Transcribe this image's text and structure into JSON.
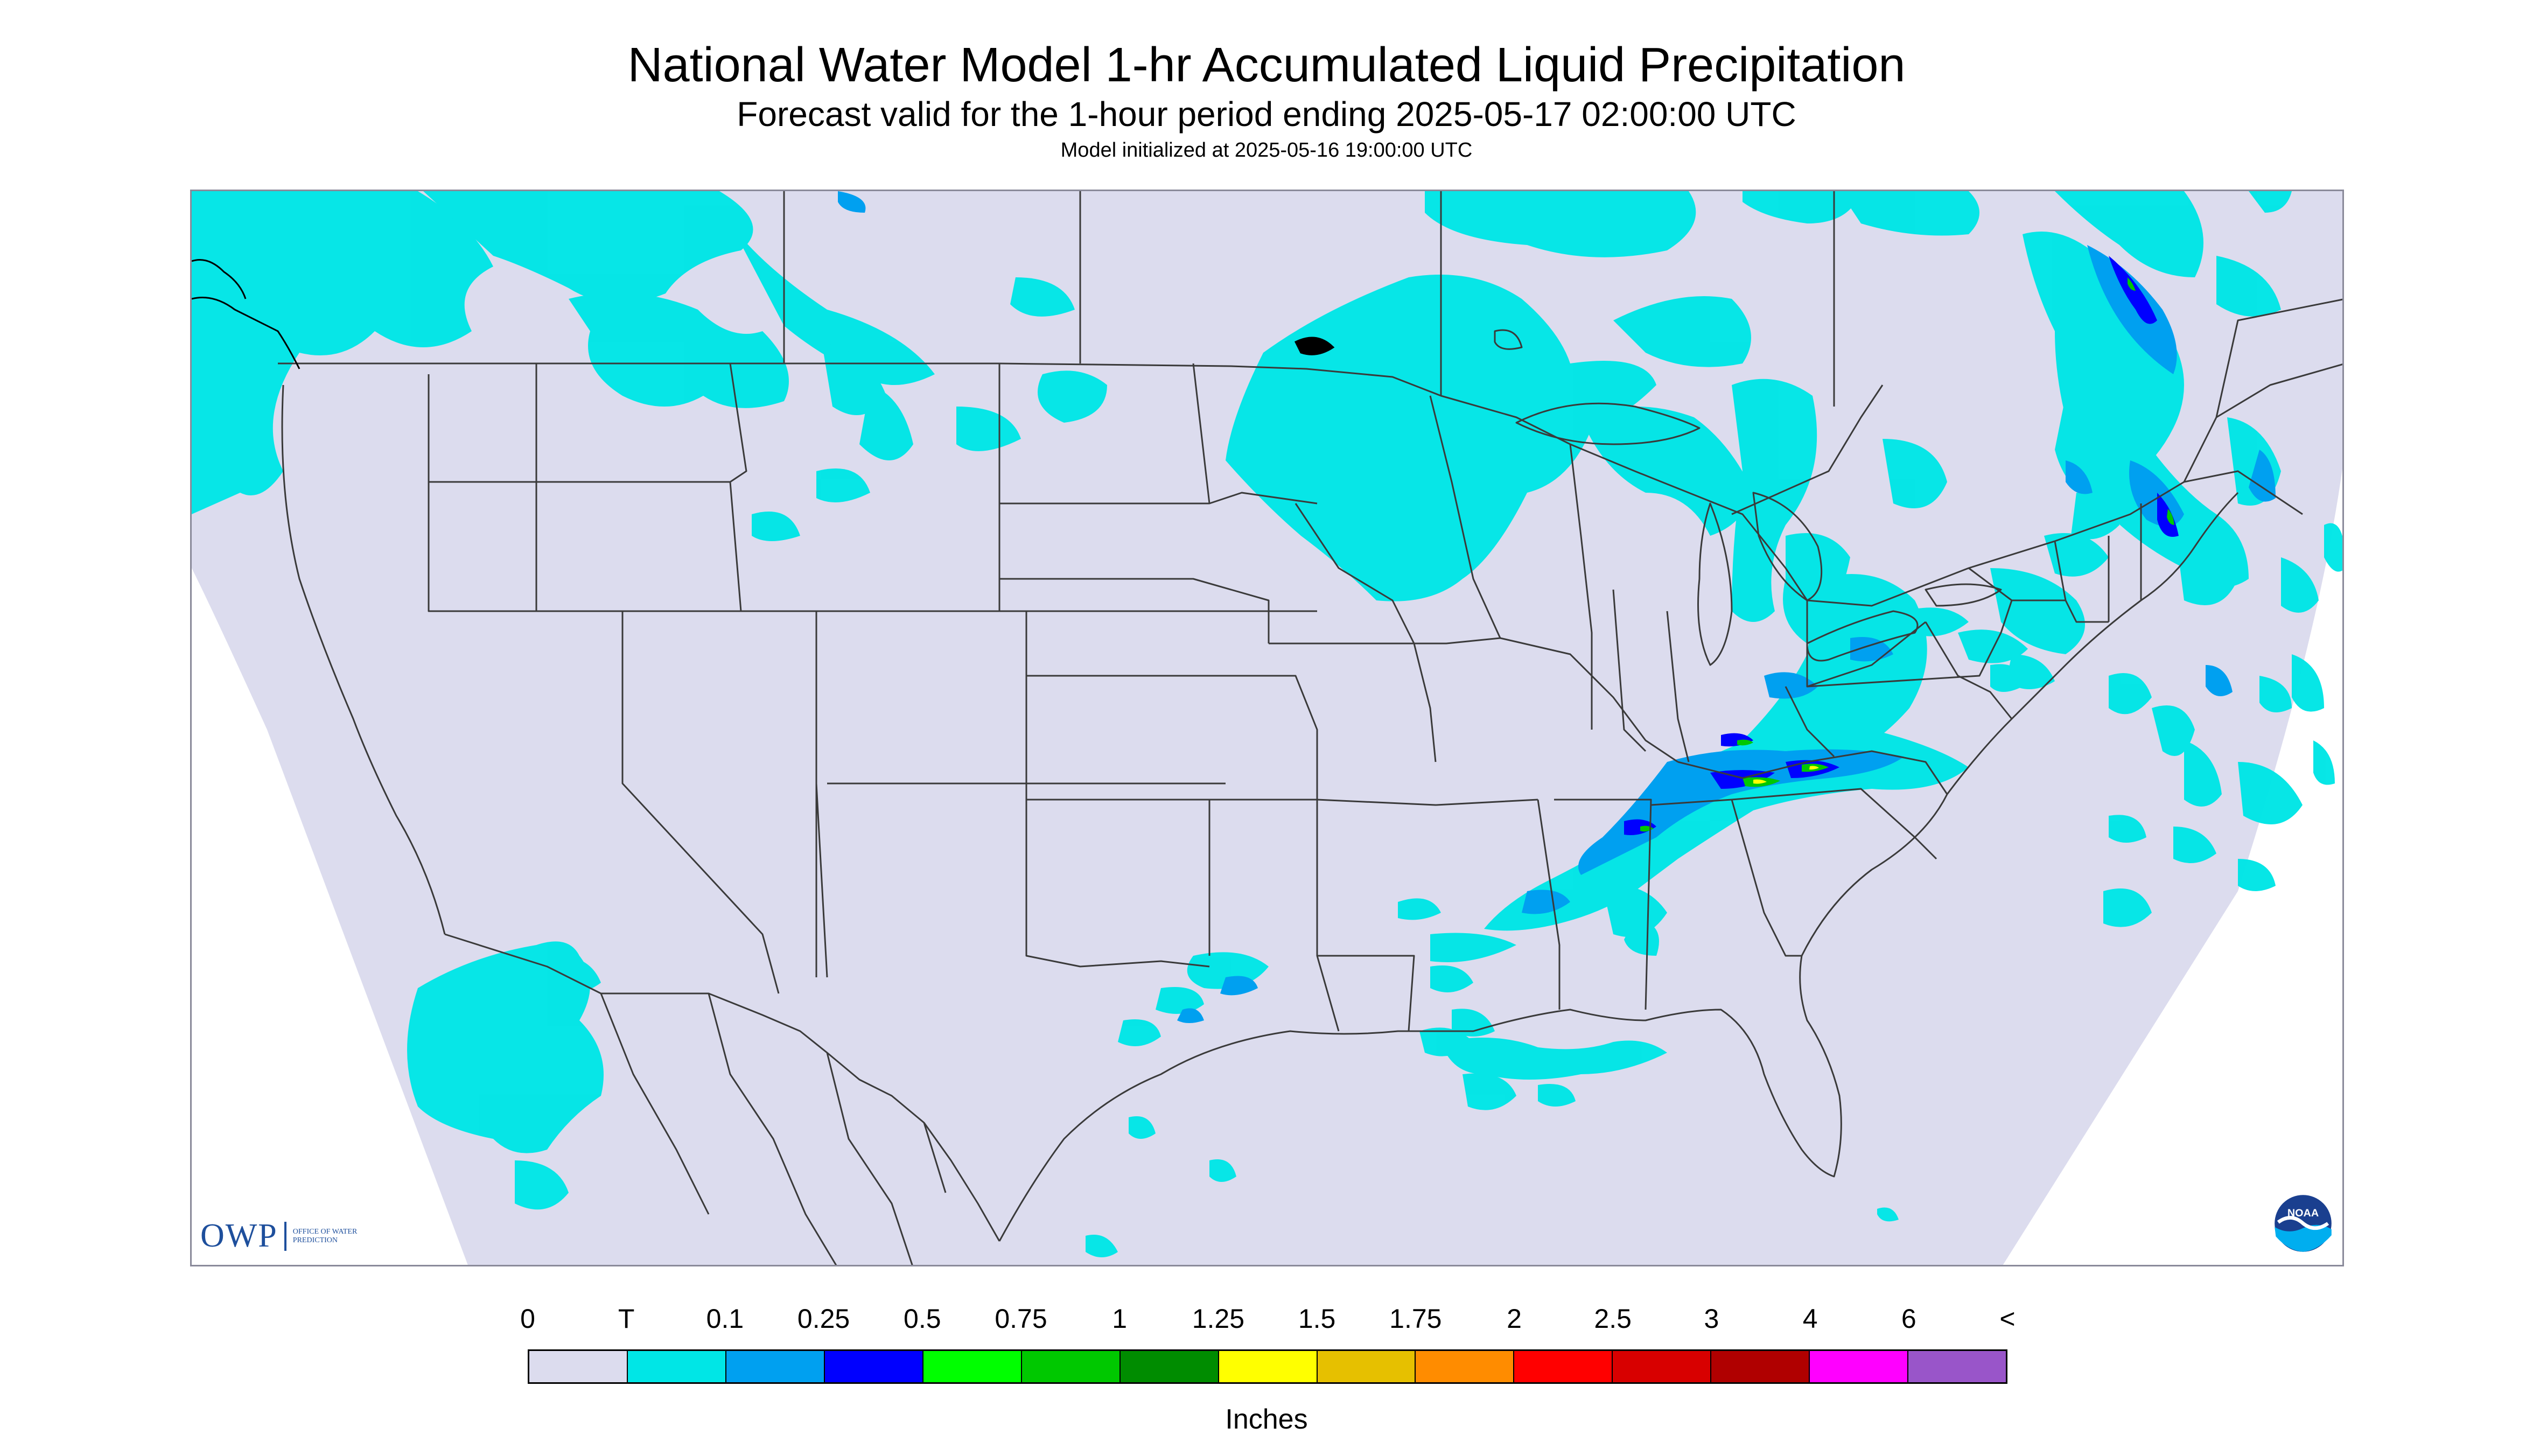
{
  "title": "National Water Model 1-hr Accumulated Liquid Precipitation",
  "subtitle": "Forecast valid for the 1-hour period ending 2025-05-17 02:00:00 UTC",
  "init_text": "Model initialized at 2025-05-16 19:00:00 UTC",
  "logos": {
    "owp": {
      "letters": "OWP",
      "text": "Office of Water Prediction"
    },
    "noaa": {
      "text": "NOAA"
    }
  },
  "legend": {
    "labels": [
      "0",
      "T",
      "0.1",
      "0.25",
      "0.5",
      "0.75",
      "1",
      "1.25",
      "1.5",
      "1.75",
      "2",
      "2.5",
      "3",
      "4",
      "6",
      "<"
    ],
    "colors": [
      "#dcdcee",
      "#00e6e6",
      "#00a0f0",
      "#0000ff",
      "#00ff00",
      "#00c800",
      "#008c00",
      "#ffff00",
      "#e6c000",
      "#ff8c00",
      "#ff0000",
      "#d80000",
      "#b00000",
      "#ff00ff",
      "#9955c9"
    ],
    "units": "Inches"
  },
  "map_colors": {
    "no_data": "#ffffff",
    "background": "#dcdcee",
    "trace": "#00e6e6",
    "light": "#00a0f0",
    "moderate": "#0000ff",
    "green": "#00c800",
    "yellow": "#ffff00",
    "borders": "#3a3a3a"
  }
}
